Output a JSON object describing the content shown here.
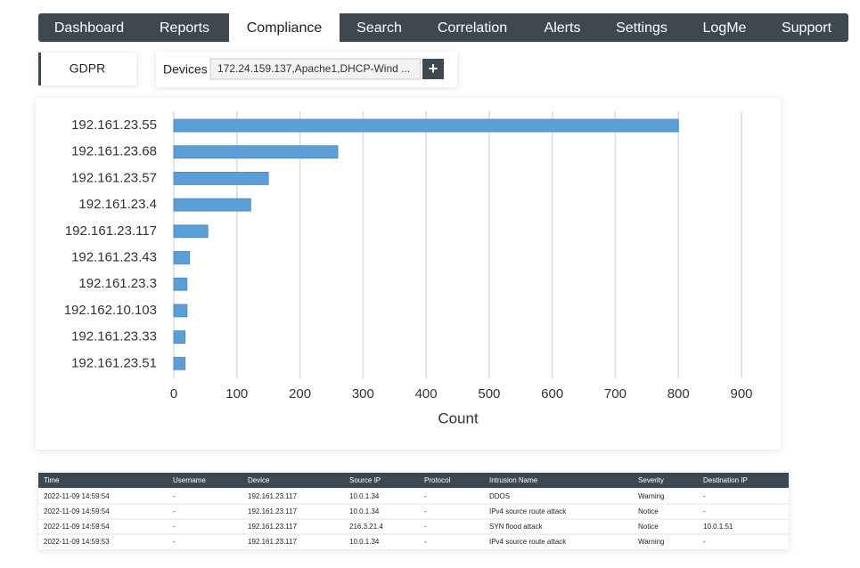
{
  "nav": {
    "tabs": [
      "Dashboard",
      "Reports",
      "Compliance",
      "Search",
      "Correlation",
      "Alerts",
      "Settings",
      "LogMe",
      "Support"
    ],
    "active_tab": 2
  },
  "side_tab": "GDPR",
  "devices": {
    "label": "Devices",
    "value": "172.24.159.137,Apache1,DHCP-Wind ...",
    "button": "+"
  },
  "chart_data": {
    "type": "bar",
    "orientation": "horizontal",
    "categories": [
      "192.161.23.55",
      "192.161.23.68",
      "192.161.23.57",
      "192.161.23.4",
      "192.161.23.117",
      "192.161.23.43",
      "192.161.23.3",
      "192.162.10.103",
      "192.161.23.33",
      "192.161.23.51"
    ],
    "values": [
      800,
      260,
      150,
      122,
      54,
      25,
      21,
      21,
      18,
      18
    ],
    "color": "#5b9fd8",
    "xlim": [
      0,
      900
    ],
    "xticks": [
      0,
      100,
      200,
      300,
      400,
      500,
      600,
      700,
      800,
      900
    ],
    "x_label": "Count",
    "grid": true
  },
  "table": {
    "columns": [
      "Time",
      "Username",
      "Device",
      "Source IP",
      "Protocol",
      "Intrusion Name",
      "Severity",
      "Destination IP"
    ],
    "rows": [
      [
        "2022-11-09 14:59:54",
        "-",
        "192.161.23.117",
        "10.0.1.34",
        "-",
        "DDOS",
        "Warning",
        "-"
      ],
      [
        "2022-11-09 14:59:54",
        "-",
        "192.161.23.117",
        "10.0.1.34",
        "-",
        "IPv4 source route attack",
        "Notice",
        "-"
      ],
      [
        "2022-11-09 14:59:54",
        "-",
        "192.161.23.117",
        "216.3.21.4",
        "-",
        "SYN flood attack",
        "Notice",
        "10.0.1.51"
      ],
      [
        "2022-11-09 14:59:53",
        "-",
        "192.161.23.117",
        "10.0.1.34",
        "-",
        "IPv4 source route attack",
        "Warning",
        "-"
      ]
    ]
  }
}
